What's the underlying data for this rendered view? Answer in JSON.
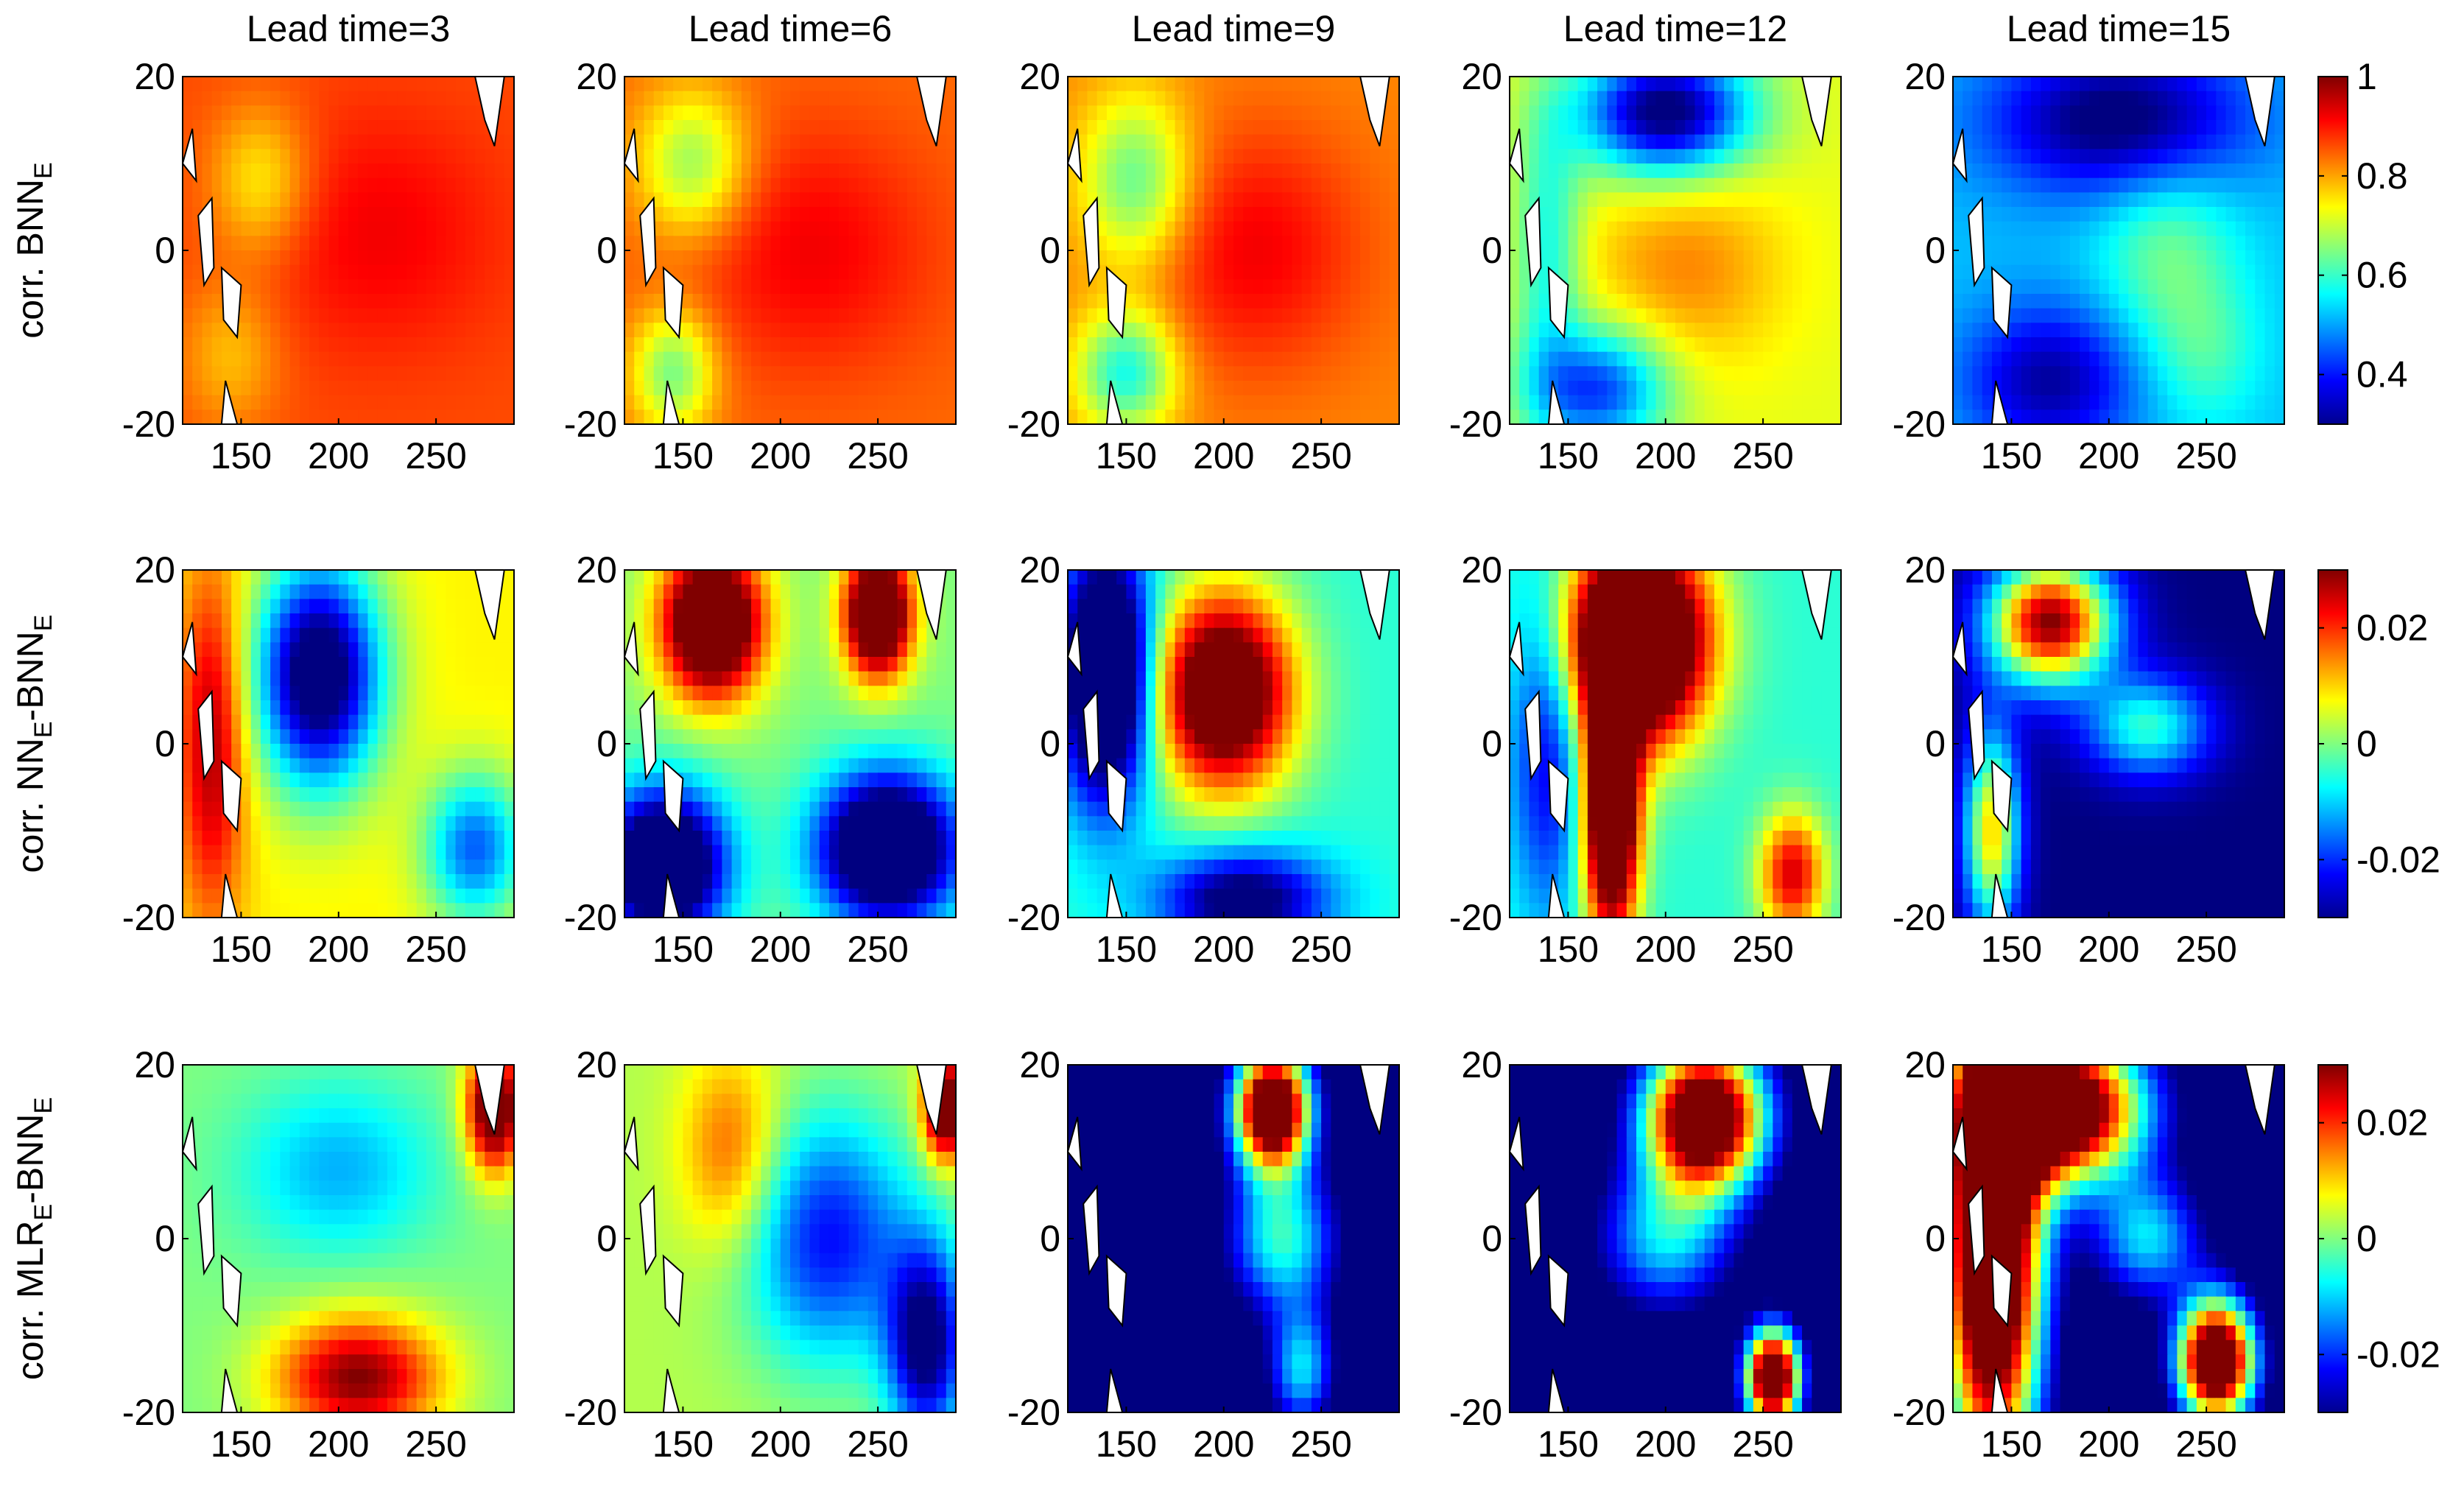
{
  "chart_data": {
    "type": "heatmap",
    "columns": [
      "Lead time=3",
      "Lead time=6",
      "Lead time=9",
      "Lead time=12",
      "Lead time=15"
    ],
    "rows": [
      {
        "ylabel_main": "corr. BNN",
        "ylabel_sub": "E",
        "ylabel_sub2": "",
        "ylabel_tail": "",
        "clim": [
          0.3,
          1.0
        ],
        "colorbar_ticks": [
          "1",
          "0.8",
          "0.6",
          "0.4"
        ],
        "colorbar_tick_values": [
          1.0,
          0.8,
          0.6,
          0.4
        ]
      },
      {
        "ylabel_main": "corr. NN",
        "ylabel_sub": "E",
        "ylabel_sub2": "E",
        "ylabel_tail": "-BNN",
        "clim": [
          -0.03,
          0.03
        ],
        "colorbar_ticks": [
          "0.02",
          "0",
          "-0.02"
        ],
        "colorbar_tick_values": [
          0.02,
          0.0,
          -0.02
        ]
      },
      {
        "ylabel_main": "corr. MLR",
        "ylabel_sub": "E",
        "ylabel_sub2": "E",
        "ylabel_tail": "-BNN",
        "clim": [
          -0.03,
          0.03
        ],
        "colorbar_ticks": [
          "0.02",
          "0",
          "-0.02"
        ],
        "colorbar_tick_values": [
          0.02,
          0.0,
          -0.02
        ]
      }
    ],
    "x_ticks": [
      "150",
      "200",
      "250"
    ],
    "x_tick_values": [
      150,
      200,
      250
    ],
    "xlim": [
      120,
      290
    ],
    "y_ticks": [
      "20",
      "0",
      "-20"
    ],
    "y_tick_values": [
      20,
      0,
      -20
    ],
    "ylim": [
      -20,
      20
    ],
    "colormap": "jet",
    "grid": false,
    "legend": "colorbar right of each row",
    "panels": [
      [
        {
          "base": 0.86,
          "blobs": [
            {
              "x": 220,
              "y": 2,
              "sx": 45,
              "sy": 10,
              "a": 0.06
            },
            {
              "x": 160,
              "y": 8,
              "sx": 18,
              "sy": 6,
              "a": -0.12
            },
            {
              "x": 145,
              "y": -12,
              "sx": 18,
              "sy": 6,
              "a": -0.08
            }
          ]
        },
        {
          "base": 0.84,
          "blobs": [
            {
              "x": 215,
              "y": 0,
              "sx": 45,
              "sy": 10,
              "a": 0.08
            },
            {
              "x": 155,
              "y": 10,
              "sx": 20,
              "sy": 6,
              "a": -0.18
            },
            {
              "x": 145,
              "y": -14,
              "sx": 15,
              "sy": 5,
              "a": -0.2
            }
          ]
        },
        {
          "base": 0.82,
          "blobs": [
            {
              "x": 215,
              "y": 0,
              "sx": 40,
              "sy": 10,
              "a": 0.1
            },
            {
              "x": 155,
              "y": 8,
              "sx": 20,
              "sy": 7,
              "a": -0.2
            },
            {
              "x": 150,
              "y": -14,
              "sx": 18,
              "sy": 5,
              "a": -0.25
            }
          ]
        },
        {
          "base": 0.72,
          "blobs": [
            {
              "x": 210,
              "y": -2,
              "sx": 35,
              "sy": 8,
              "a": 0.1
            },
            {
              "x": 200,
              "y": 16,
              "sx": 30,
              "sy": 5,
              "a": -0.45
            },
            {
              "x": 165,
              "y": -16,
              "sx": 25,
              "sy": 5,
              "a": -0.3
            },
            {
              "x": 140,
              "y": 0,
              "sx": 12,
              "sy": 12,
              "a": -0.15
            }
          ]
        },
        {
          "base": 0.52,
          "blobs": [
            {
              "x": 205,
              "y": 15,
              "sx": 45,
              "sy": 6,
              "a": -0.25
            },
            {
              "x": 170,
              "y": -15,
              "sx": 30,
              "sy": 6,
              "a": -0.2
            },
            {
              "x": 230,
              "y": 0,
              "sx": 25,
              "sy": 8,
              "a": 0.12
            },
            {
              "x": 250,
              "y": -12,
              "sx": 20,
              "sy": 6,
              "a": 0.08
            }
          ]
        }
      ],
      [
        {
          "base": 0.008,
          "blobs": [
            {
              "x": 190,
              "y": 8,
              "sx": 22,
              "sy": 9,
              "a": -0.045
            },
            {
              "x": 135,
              "y": 0,
              "sx": 12,
              "sy": 14,
              "a": 0.02
            },
            {
              "x": 270,
              "y": -12,
              "sx": 18,
              "sy": 6,
              "a": -0.025
            }
          ]
        },
        {
          "base": 0.0,
          "blobs": [
            {
              "x": 165,
              "y": 14,
              "sx": 18,
              "sy": 6,
              "a": 0.05
            },
            {
              "x": 250,
              "y": 15,
              "sx": 12,
              "sy": 5,
              "a": 0.05
            },
            {
              "x": 140,
              "y": -14,
              "sx": 22,
              "sy": 6,
              "a": -0.05
            },
            {
              "x": 255,
              "y": -12,
              "sx": 25,
              "sy": 6,
              "a": -0.05
            }
          ]
        },
        {
          "base": -0.005,
          "blobs": [
            {
              "x": 200,
              "y": 6,
              "sx": 25,
              "sy": 8,
              "a": 0.05
            },
            {
              "x": 140,
              "y": 8,
              "sx": 16,
              "sy": 10,
              "a": -0.05
            },
            {
              "x": 210,
              "y": -18,
              "sx": 30,
              "sy": 4,
              "a": -0.03
            }
          ]
        },
        {
          "base": -0.005,
          "blobs": [
            {
              "x": 185,
              "y": 12,
              "sx": 25,
              "sy": 8,
              "a": 0.07
            },
            {
              "x": 172,
              "y": -8,
              "sx": 10,
              "sy": 10,
              "a": 0.06
            },
            {
              "x": 265,
              "y": -15,
              "sx": 12,
              "sy": 5,
              "a": 0.03
            },
            {
              "x": 140,
              "y": 0,
              "sx": 14,
              "sy": 14,
              "a": -0.02
            }
          ]
        },
        {
          "base": -0.03,
          "blobs": [
            {
              "x": 170,
              "y": 14,
              "sx": 22,
              "sy": 5,
              "a": 0.06
            },
            {
              "x": 140,
              "y": -10,
              "sx": 10,
              "sy": 8,
              "a": 0.04
            },
            {
              "x": 220,
              "y": 2,
              "sx": 22,
              "sy": 4,
              "a": 0.025
            }
          ]
        }
      ],
      [
        {
          "base": 0.0,
          "blobs": [
            {
              "x": 200,
              "y": 8,
              "sx": 35,
              "sy": 7,
              "a": -0.012
            },
            {
              "x": 210,
              "y": -16,
              "sx": 30,
              "sy": 5,
              "a": 0.03
            },
            {
              "x": 280,
              "y": 15,
              "sx": 10,
              "sy": 5,
              "a": 0.04
            }
          ]
        },
        {
          "base": 0.003,
          "blobs": [
            {
              "x": 225,
              "y": 0,
              "sx": 30,
              "sy": 10,
              "a": -0.025
            },
            {
              "x": 175,
              "y": 10,
              "sx": 18,
              "sy": 8,
              "a": 0.015
            },
            {
              "x": 275,
              "y": -12,
              "sx": 14,
              "sy": 8,
              "a": -0.035
            },
            {
              "x": 285,
              "y": 15,
              "sx": 8,
              "sy": 4,
              "a": 0.04
            }
          ]
        },
        {
          "base": -0.04,
          "blobs": [
            {
              "x": 225,
              "y": 15,
              "sx": 14,
              "sy": 5,
              "a": 0.09
            },
            {
              "x": 230,
              "y": 0,
              "sx": 20,
              "sy": 6,
              "a": 0.035
            },
            {
              "x": 240,
              "y": -15,
              "sx": 12,
              "sy": 5,
              "a": 0.03
            }
          ]
        },
        {
          "base": -0.04,
          "blobs": [
            {
              "x": 220,
              "y": 14,
              "sx": 22,
              "sy": 6,
              "a": 0.09
            },
            {
              "x": 255,
              "y": -16,
              "sx": 10,
              "sy": 4,
              "a": 0.09
            },
            {
              "x": 200,
              "y": 0,
              "sx": 25,
              "sy": 6,
              "a": 0.03
            }
          ]
        },
        {
          "base": -0.04,
          "blobs": [
            {
              "x": 140,
              "y": 0,
              "sx": 18,
              "sy": 20,
              "a": 0.1
            },
            {
              "x": 175,
              "y": 15,
              "sx": 30,
              "sy": 6,
              "a": 0.09
            },
            {
              "x": 255,
              "y": -14,
              "sx": 14,
              "sy": 5,
              "a": 0.09
            },
            {
              "x": 220,
              "y": 0,
              "sx": 20,
              "sy": 5,
              "a": 0.03
            }
          ]
        }
      ]
    ]
  }
}
